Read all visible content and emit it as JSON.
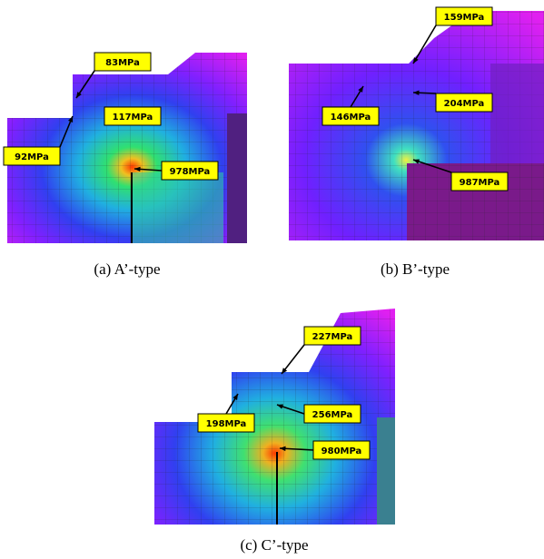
{
  "panels": [
    {
      "caption": "(a) A’-type",
      "labels": [
        "83MPa",
        "117MPa",
        "92MPa",
        "978MPa"
      ]
    },
    {
      "caption": "(b) B’-type",
      "labels": [
        "159MPa",
        "204MPa",
        "146MPa",
        "987MPa"
      ]
    },
    {
      "caption": "(c) C’-type",
      "labels": [
        "227MPa",
        "256MPa",
        "198MPa",
        "980MPa"
      ]
    }
  ]
}
